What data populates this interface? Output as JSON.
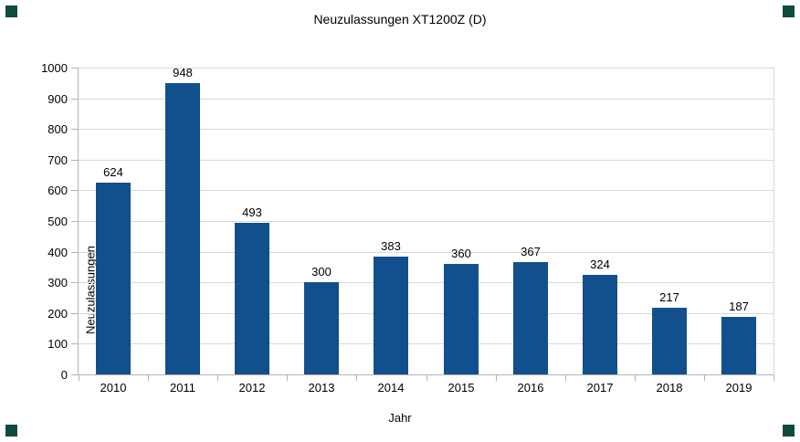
{
  "chart_data": {
    "type": "bar",
    "title": "Neuzulassungen XT1200Z (D)",
    "xlabel": "Jahr",
    "ylabel": "Neuzulassungen",
    "categories": [
      "2010",
      "2011",
      "2012",
      "2013",
      "2014",
      "2015",
      "2016",
      "2017",
      "2018",
      "2019"
    ],
    "values": [
      624,
      948,
      493,
      300,
      383,
      360,
      367,
      324,
      217,
      187
    ],
    "ylim": [
      0,
      1000
    ],
    "ytick_step": 100,
    "grid": true,
    "legend": "none",
    "value_labels": true
  },
  "colors": {
    "bar": "#11508C",
    "gridline": "#d9d9d9",
    "axis": "#b3b3b3",
    "text": "#000000",
    "selection_handle": "#0f4b3f",
    "background": "#ffffff"
  },
  "selection_handles": [
    "top-left",
    "top-right",
    "bottom-left",
    "bottom-right"
  ]
}
